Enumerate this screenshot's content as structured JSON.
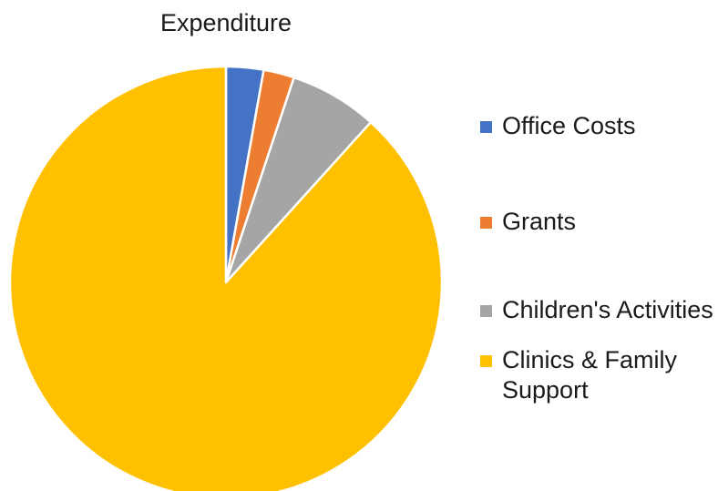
{
  "chart_data": {
    "type": "pie",
    "title": "Expenditure",
    "categories": [
      "Office Costs",
      "Grants",
      "Children's Activities",
      "Clinics & Family Support"
    ],
    "values": [
      2.8,
      2.3,
      6.6,
      88.3
    ],
    "unit": "percent (estimated share of total)",
    "colors": [
      "#4472C4",
      "#ED7D31",
      "#A5A5A5",
      "#FFC000"
    ],
    "start_angle_deg": 0,
    "direction": "clockwise",
    "legend_position": "right",
    "legend": [
      {
        "label": "Office Costs",
        "color": "#4472C4"
      },
      {
        "label": "Grants",
        "color": "#ED7D31"
      },
      {
        "label": "Children's Activities",
        "color": "#A5A5A5"
      },
      {
        "label": "Clinics & Family Support",
        "color": "#FFC000"
      }
    ]
  }
}
